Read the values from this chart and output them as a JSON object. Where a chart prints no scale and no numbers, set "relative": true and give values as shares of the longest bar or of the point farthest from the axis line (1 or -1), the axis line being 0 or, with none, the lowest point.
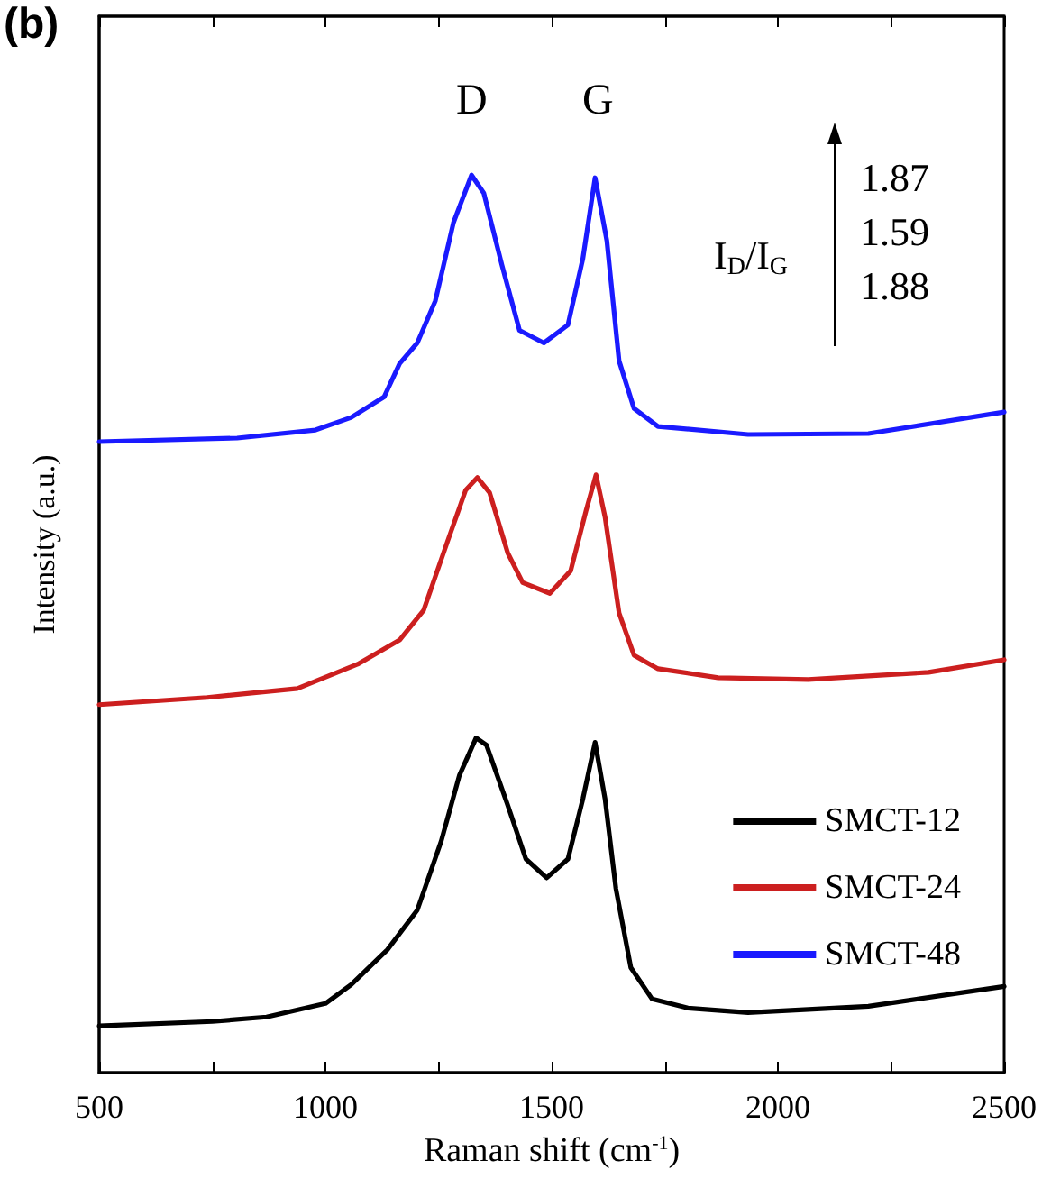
{
  "chart_data": {
    "type": "line",
    "relative": true,
    "xlabel": "Raman shift (cm$^{-1}$)",
    "ylabel": "Intensity (a.u.)",
    "xlim": [
      500,
      2500
    ],
    "xticks": [
      500,
      {
        "value": 750,
        "label": null
      },
      1000,
      {
        "value": 1250,
        "label": null
      },
      1500,
      {
        "value": 1750,
        "label": null
      },
      2000,
      {
        "value": 2250,
        "label": null
      },
      2500
    ],
    "tick_labels": "x",
    "grid": false,
    "legend": "bottom right",
    "marker": "none",
    "line_style": "solid",
    "annotations": [
      "(b)",
      "D",
      "G",
      "I$_{D}$/I$_{G}$",
      "1.87",
      "1.59",
      "1.88"
    ],
    "series": [
      {
        "name": "SMCT-12",
        "color": "#000000",
        "x": [
          500,
          750,
          870,
          1000,
          1057,
          1137,
          1203,
          1256,
          1296,
          1333,
          1356,
          1403,
          1443,
          1489,
          1536,
          1569,
          1596,
          1618,
          1642,
          1675,
          1722,
          1801,
          1934,
          2200,
          2500
        ],
        "values": [
          0.052,
          0.057,
          0.062,
          0.077,
          0.098,
          0.137,
          0.181,
          0.258,
          0.331,
          0.373,
          0.365,
          0.298,
          0.238,
          0.217,
          0.238,
          0.305,
          0.368,
          0.305,
          0.205,
          0.117,
          0.082,
          0.072,
          0.067,
          0.074,
          0.096
        ]
      },
      {
        "name": "SMCT-24",
        "color": "#cc1f1f",
        "x": [
          500,
          739,
          938,
          1071,
          1164,
          1217,
          1270,
          1310,
          1336,
          1363,
          1403,
          1436,
          1496,
          1542,
          1576,
          1598,
          1618,
          1649,
          1682,
          1735,
          1868,
          2067,
          2333,
          2500
        ],
        "values": [
          0.41,
          0.418,
          0.428,
          0.455,
          0.482,
          0.515,
          0.592,
          0.649,
          0.663,
          0.646,
          0.579,
          0.546,
          0.534,
          0.559,
          0.626,
          0.666,
          0.619,
          0.512,
          0.465,
          0.45,
          0.44,
          0.438,
          0.446,
          0.46
        ]
      },
      {
        "name": "SMCT-48",
        "color": "#1a1aff",
        "x": [
          500,
          805,
          978,
          1057,
          1130,
          1164,
          1203,
          1243,
          1283,
          1323,
          1350,
          1390,
          1429,
          1483,
          1536,
          1569,
          1596,
          1622,
          1649,
          1682,
          1735,
          1934,
          2200,
          2500
        ],
        "values": [
          0.703,
          0.707,
          0.716,
          0.73,
          0.753,
          0.79,
          0.813,
          0.86,
          0.947,
          1.0,
          0.98,
          0.9,
          0.827,
          0.813,
          0.833,
          0.907,
          0.997,
          0.927,
          0.793,
          0.74,
          0.72,
          0.711,
          0.712,
          0.736
        ]
      }
    ]
  }
}
